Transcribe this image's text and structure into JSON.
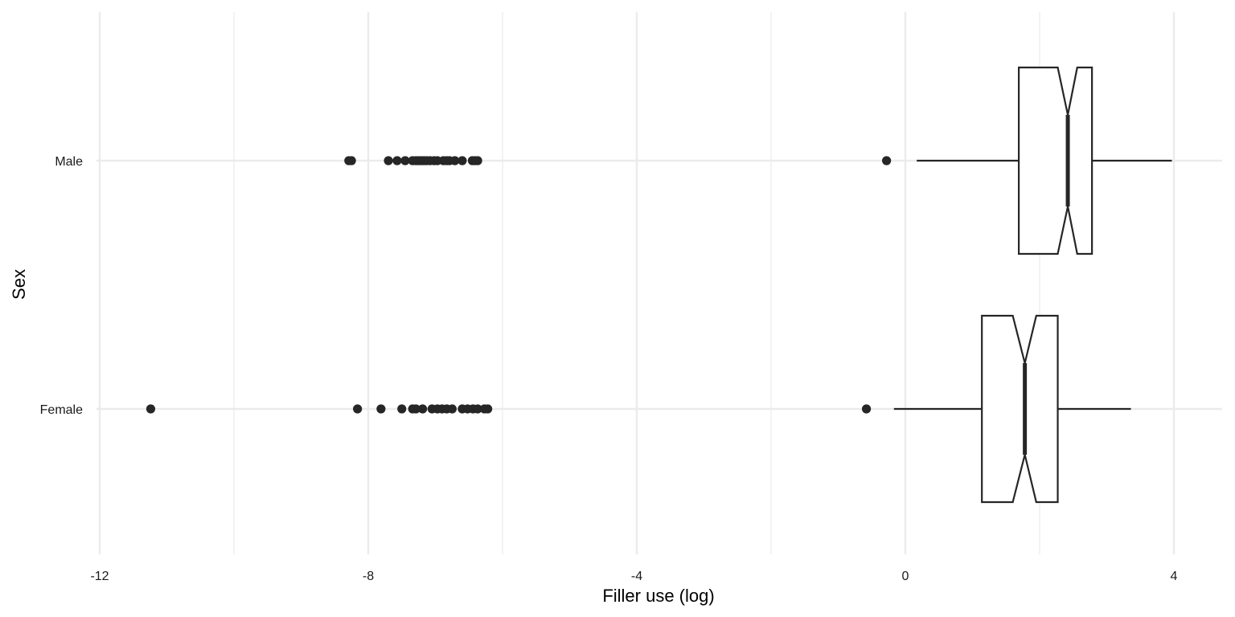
{
  "chart_data": {
    "type": "boxplot",
    "orientation": "horizontal",
    "notched": true,
    "xlabel": "Filler use (log)",
    "ylabel": "Sex",
    "xlim": [
      -12,
      4.75
    ],
    "x_ticks": [
      -12,
      -8,
      -4,
      0,
      4
    ],
    "x_tick_labels": [
      "-12",
      "-8",
      "-4",
      "0",
      "4"
    ],
    "categories": [
      "Male",
      "Female"
    ],
    "grid": true,
    "legend": "none",
    "box_color": "#ffffff",
    "line_color": "#262626",
    "grid_color": "#ebebeb",
    "series": [
      {
        "category": "Male",
        "whisker_low": 0.17,
        "q1": 1.69,
        "median": 2.42,
        "q3": 2.78,
        "whisker_high": 3.97,
        "notch_low": 2.27,
        "notch_high": 2.56,
        "outliers": [
          -8.29,
          -8.25,
          -7.7,
          -7.57,
          -7.45,
          -7.34,
          -7.29,
          -7.25,
          -7.21,
          -7.17,
          -7.13,
          -7.08,
          -7.02,
          -6.97,
          -6.88,
          -6.83,
          -6.79,
          -6.71,
          -6.6,
          -6.45,
          -6.41,
          -6.37,
          -0.28
        ]
      },
      {
        "category": "Female",
        "whisker_low": -0.17,
        "q1": 1.14,
        "median": 1.78,
        "q3": 2.27,
        "whisker_high": 3.36,
        "notch_low": 1.6,
        "notch_high": 1.95,
        "outliers": [
          -11.24,
          -8.16,
          -7.81,
          -7.5,
          -7.34,
          -7.29,
          -7.19,
          -7.05,
          -6.97,
          -6.9,
          -6.83,
          -6.75,
          -6.6,
          -6.52,
          -6.44,
          -6.37,
          -6.27,
          -6.22,
          -0.58
        ]
      }
    ]
  }
}
